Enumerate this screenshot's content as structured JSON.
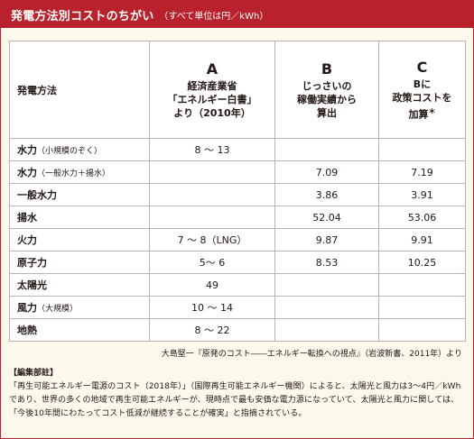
{
  "title": {
    "main": "発電方法別コストのちがい",
    "sub": "（すべて単位は円／kWh）"
  },
  "table": {
    "header": {
      "method": "発電方法",
      "columns": [
        {
          "letter": "A",
          "lines": [
            "経済産業省",
            "「エネルギー白書」",
            "より（2010年）"
          ],
          "mark": ""
        },
        {
          "letter": "B",
          "lines": [
            "じっさいの",
            "稼働実績から",
            "算出"
          ],
          "mark": ""
        },
        {
          "letter": "C",
          "lines": [
            "Bに",
            "政策コストを",
            "加算"
          ],
          "mark": "＊"
        }
      ]
    },
    "rows": [
      {
        "method": "水力",
        "note": "（小規模のぞく）",
        "a": "8 〜 13",
        "b": "",
        "c": ""
      },
      {
        "method": "水力",
        "note": "（一般水力＋揚水）",
        "a": "",
        "b": "7.09",
        "c": "7.19"
      },
      {
        "method": "一般水力",
        "note": "",
        "a": "",
        "b": "3.86",
        "c": "3.91"
      },
      {
        "method": "揚水",
        "note": "",
        "a": "",
        "b": "52.04",
        "c": "53.06"
      },
      {
        "method": "火力",
        "note": "",
        "a": "7 〜 8（LNG）",
        "b": "9.87",
        "c": "9.91"
      },
      {
        "method": "原子力",
        "note": "",
        "a": "5〜 6",
        "b": "8.53",
        "c": "10.25"
      },
      {
        "method": "太陽光",
        "note": "",
        "a": "49",
        "b": "",
        "c": ""
      },
      {
        "method": "風力",
        "note": "（大規模）",
        "a": "10 〜 14",
        "b": "",
        "c": ""
      },
      {
        "method": "地熱",
        "note": "",
        "a": "8 〜 22",
        "b": "",
        "c": ""
      }
    ]
  },
  "source": "大島堅一『原発のコスト――エネルギー転換への視点』（岩波新書、2011年）より",
  "editor_note": {
    "label": "【編集部註】",
    "text": "「再生可能エネルギー電源のコスト（2018年）」（国際再生可能エネルギー機関）によると、太陽光と風力は3〜4円／kWhであり、世界の多くの地域で再生可能エネルギーが、現時点で最も安価な電力源になっていて、太陽光と風力に関しては、「今後10年間にわたってコスト低減が継続することが確実」と指摘されている。"
  },
  "colors": {
    "accent": "#b9212c",
    "background": "#fdf8ec",
    "grid": "#b6b6b6"
  }
}
